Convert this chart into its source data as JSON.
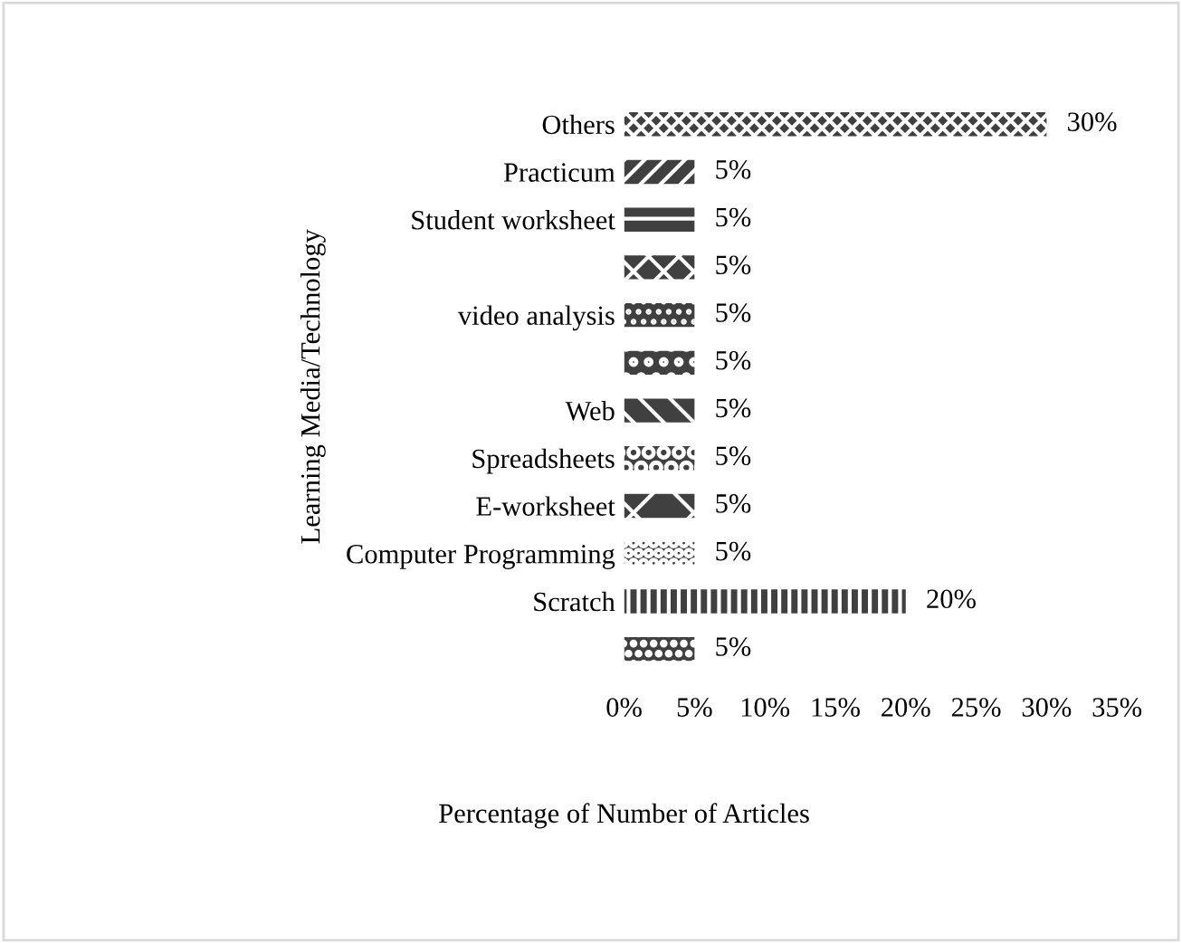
{
  "chart_data": {
    "type": "bar",
    "orientation": "horizontal",
    "xlabel": "Percentage of Number of Articles",
    "ylabel": "Learning Media/Technology",
    "categories": [
      "Others",
      "Practicum",
      "Student worksheet",
      null,
      "video analysis",
      null,
      "Web",
      "Spreadsheets",
      "E-worksheet",
      "Computer Programming",
      "Scratch",
      null
    ],
    "values": [
      30,
      5,
      5,
      5,
      5,
      5,
      5,
      5,
      5,
      5,
      20,
      5
    ],
    "value_labels": [
      "30%",
      "5%",
      "5%",
      "5%",
      "5%",
      "5%",
      "5%",
      "5%",
      "5%",
      "5%",
      "20%",
      "5%"
    ],
    "color": "#404040",
    "xlim": [
      0,
      35
    ],
    "xticks": [
      {
        "value": 0,
        "label": "0%"
      },
      {
        "value": 5,
        "label": "5%"
      },
      {
        "value": 10,
        "label": "10%"
      },
      {
        "value": 15,
        "label": "15%"
      },
      {
        "value": 20,
        "label": "20%"
      },
      {
        "value": 25,
        "label": "25%"
      },
      {
        "value": 30,
        "label": "30%"
      },
      {
        "value": 35,
        "label": "35%"
      }
    ],
    "grid": false,
    "legend": false
  }
}
